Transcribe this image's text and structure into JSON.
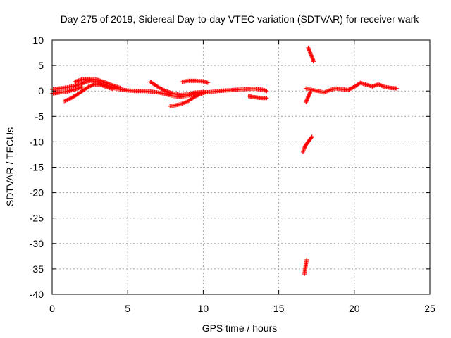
{
  "chart_data": {
    "type": "scatter",
    "title": "Day 275 of 2019, Sidereal Day-to-day VTEC variation (SDTVAR) for receiver wark",
    "xlabel": "GPS time / hours",
    "ylabel": "SDTVAR / TECUs",
    "xlim": [
      0,
      25
    ],
    "ylim": [
      -40,
      10
    ],
    "x_ticks": [
      0,
      5,
      10,
      15,
      20,
      25
    ],
    "y_ticks": [
      10,
      5,
      0,
      -5,
      -10,
      -15,
      -20,
      -25,
      -30,
      -35,
      -40
    ],
    "grid": true,
    "marker": "+",
    "series_color": "#ff0000",
    "series": [
      {
        "name": "SDTVAR",
        "segments": [
          {
            "x": [
              0.0,
              0.5,
              1.0,
              1.5,
              2.0,
              2.5,
              3.0,
              3.5,
              4.0,
              4.5,
              5.0,
              5.5,
              6.0,
              6.5,
              7.0,
              7.5,
              8.0,
              8.5,
              9.0,
              9.5,
              10.0,
              10.5,
              11.0,
              11.5,
              12.0,
              12.5,
              13.0,
              13.5,
              14.0,
              14.2
            ],
            "y": [
              0.3,
              0.5,
              0.7,
              1.0,
              1.5,
              2.0,
              1.8,
              1.2,
              0.6,
              0.3,
              0.1,
              0.0,
              0.0,
              -0.1,
              -0.3,
              -0.6,
              -1.0,
              -1.2,
              -0.9,
              -0.5,
              -0.3,
              -0.2,
              0.0,
              0.1,
              0.2,
              0.3,
              0.4,
              0.4,
              0.2,
              0.0
            ]
          },
          {
            "x": [
              0.0,
              0.5,
              1.0,
              1.5,
              2.0
            ],
            "y": [
              -0.5,
              -0.3,
              -0.1,
              0.3,
              0.8
            ]
          },
          {
            "x": [
              0.8,
              1.2,
              1.6,
              2.0,
              2.4,
              2.8,
              3.2,
              3.6,
              4.0
            ],
            "y": [
              -2.0,
              -1.5,
              -0.8,
              0.0,
              0.8,
              1.3,
              1.2,
              0.8,
              0.4
            ]
          },
          {
            "x": [
              1.5,
              2.0,
              2.5,
              3.0,
              3.5,
              4.0,
              4.5
            ],
            "y": [
              1.8,
              2.3,
              2.4,
              2.2,
              1.7,
              1.1,
              0.6
            ]
          },
          {
            "x": [
              6.5,
              7.0,
              7.5,
              8.0,
              8.5,
              9.0,
              9.5,
              10.0
            ],
            "y": [
              1.8,
              0.8,
              0.0,
              -0.5,
              -0.8,
              -0.6,
              -0.3,
              -0.2
            ]
          },
          {
            "x": [
              7.8,
              8.2,
              8.6,
              9.0,
              9.4,
              9.8,
              10.2
            ],
            "y": [
              -3.0,
              -2.8,
              -2.5,
              -2.0,
              -1.2,
              -0.6,
              -0.2
            ]
          },
          {
            "x": [
              8.6,
              9.0,
              9.5,
              10.0,
              10.3
            ],
            "y": [
              1.8,
              2.0,
              2.0,
              1.9,
              1.6
            ]
          },
          {
            "x": [
              13.0,
              13.3,
              13.6,
              14.0,
              14.2
            ],
            "y": [
              -1.0,
              -1.2,
              -1.3,
              -1.4,
              -1.4
            ]
          },
          {
            "x": [
              16.6,
              16.7,
              16.8,
              16.9,
              17.0,
              17.1,
              17.2
            ],
            "y": [
              -12.0,
              -11.2,
              -10.6,
              -10.2,
              -9.8,
              -9.4,
              -9.0
            ]
          },
          {
            "x": [
              16.7,
              16.75,
              16.8,
              16.85
            ],
            "y": [
              -36.0,
              -35.0,
              -34.0,
              -33.2
            ]
          },
          {
            "x": [
              16.95,
              17.05,
              17.15,
              17.25,
              17.3
            ],
            "y": [
              8.5,
              7.8,
              7.0,
              6.3,
              5.8
            ]
          },
          {
            "x": [
              16.8,
              16.9,
              17.0,
              17.1
            ],
            "y": [
              -2.2,
              -1.5,
              -0.8,
              -0.2
            ]
          },
          {
            "x": [
              16.8,
              17.2,
              17.6,
              18.0,
              18.4,
              18.8,
              19.2,
              19.6,
              20.0,
              20.4,
              20.8,
              21.2,
              21.6,
              22.0,
              22.4,
              22.8
            ],
            "y": [
              0.5,
              0.2,
              0.0,
              -0.3,
              0.2,
              0.5,
              0.3,
              0.2,
              0.8,
              1.6,
              1.2,
              0.9,
              1.3,
              0.8,
              0.6,
              0.5
            ]
          }
        ]
      }
    ]
  }
}
